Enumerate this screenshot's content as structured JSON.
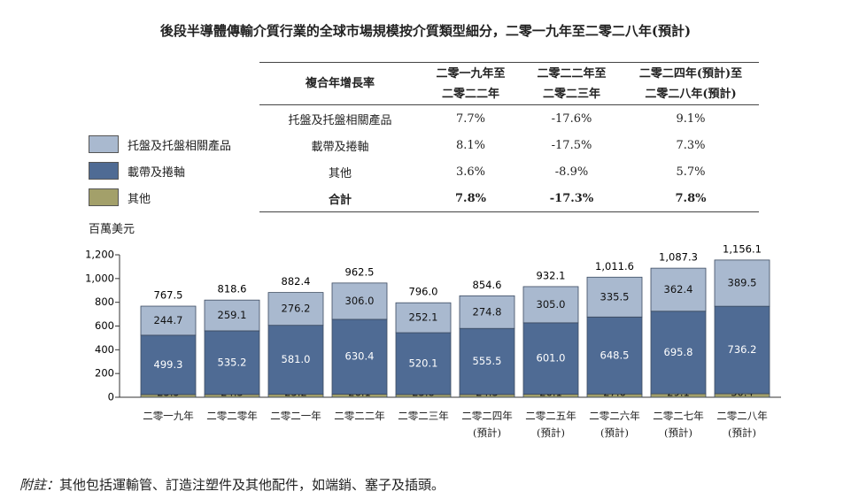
{
  "chart_data": {
    "type": "bar",
    "stacked": true,
    "title": "後段半導體傳輸介質行業的全球市場規模按介質類型細分，二零一九年至二零二八年(預計)",
    "y_label": "百萬美元",
    "categories": [
      "二零一九年",
      "二零二零年",
      "二零二一年",
      "二零二二年",
      "二零二三年",
      "二零二四年\n(預計)",
      "二零二五年\n(預計)",
      "二零二六年\n(預計)",
      "二零二七年\n(預計)",
      "二零二八年\n(預計)"
    ],
    "series": [
      {
        "name": "托盤及托盤相關產品",
        "color": "#a9b9cf",
        "values": [
          244.7,
          259.1,
          276.2,
          306.0,
          252.1,
          274.8,
          305.0,
          335.5,
          362.4,
          389.5
        ],
        "value_labels": [
          "244.7",
          "259.1",
          "276.2",
          "306.0",
          "252.1",
          "274.8",
          "305.0",
          "335.5",
          "362.4",
          "389.5"
        ]
      },
      {
        "name": "載帶及捲軸",
        "color": "#4f6b94",
        "values": [
          499.3,
          535.2,
          581.0,
          630.4,
          520.1,
          555.5,
          601.0,
          648.5,
          695.8,
          736.2
        ],
        "value_labels": [
          "499.3",
          "535.2",
          "581.0",
          "630.4",
          "520.1",
          "555.5",
          "601.0",
          "648.5",
          "695.8",
          "736.2"
        ]
      },
      {
        "name": "其他",
        "color": "#a3a06a",
        "values": [
          23.5,
          24.3,
          25.2,
          26.1,
          23.8,
          24.3,
          26.1,
          27.6,
          29.1,
          30.4
        ]
      }
    ],
    "totals": {
      "values": [
        767.5,
        818.6,
        882.4,
        962.5,
        796.0,
        854.6,
        932.1,
        1011.6,
        1087.3,
        1156.1
      ],
      "value_labels": [
        "767.5",
        "818.6",
        "882.4",
        "962.5",
        "796.0",
        "854.6",
        "932.1",
        "1,011.6",
        "1,087.3",
        "1,156.1"
      ]
    },
    "ylim": [
      0,
      1200
    ],
    "yticks": [
      0,
      200,
      400,
      600,
      800,
      {
        "value": 1000,
        "label": "1,000"
      },
      {
        "value": 1200,
        "label": "1,200"
      }
    ]
  },
  "table": {
    "header": [
      "複合年增長率",
      "二零一九年至\n二零二二年",
      "二零二二年至\n二零二三年",
      "二零二四年(預計)至\n二零二八年(預計)"
    ],
    "rows": [
      [
        "托盤及托盤相關產品",
        "7.7%",
        "-17.6%",
        "9.1%"
      ],
      [
        "載帶及捲軸",
        "8.1%",
        "-17.5%",
        "7.3%"
      ],
      [
        "其他",
        "3.6%",
        "-8.9%",
        "5.7%"
      ],
      [
        "合計",
        "7.8%",
        "-17.3%",
        "7.8%"
      ]
    ]
  },
  "footnote": {
    "label": "附註：",
    "text": "其他包括運輸管、訂造注塑件及其他配件，如端銷、塞子及插頭。"
  }
}
